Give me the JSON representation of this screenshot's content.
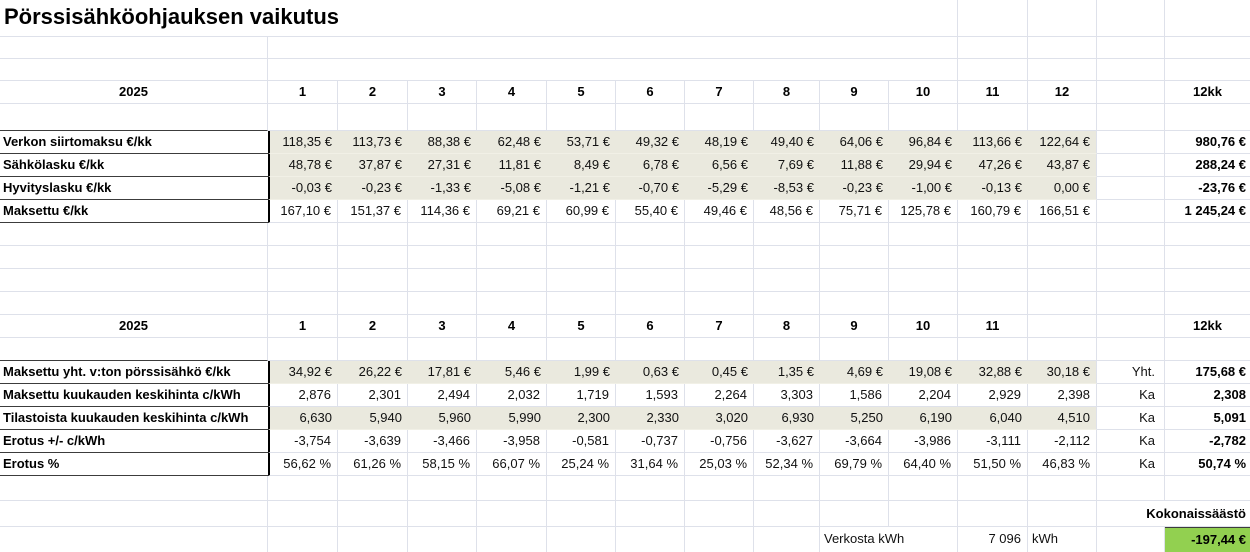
{
  "title": "Pörssisähköohjauksen vaikutus",
  "colors": {
    "highlight_row": "#eae9de",
    "savings_green": "#92d050"
  },
  "table1": {
    "year": "2025",
    "months": [
      "1",
      "2",
      "3",
      "4",
      "5",
      "6",
      "7",
      "8",
      "9",
      "10",
      "11",
      "12"
    ],
    "total_header": "12kk",
    "rows": [
      {
        "label": "Verkon siirtomaksu €/kk",
        "values": [
          "118,35 €",
          "113,73 €",
          "88,38 €",
          "62,48 €",
          "53,71 €",
          "49,32 €",
          "48,19 €",
          "49,40 €",
          "64,06 €",
          "96,84 €",
          "113,66 €",
          "122,64 €"
        ],
        "total": "980,76 €"
      },
      {
        "label": "Sähkölasku €/kk",
        "values": [
          "48,78 €",
          "37,87 €",
          "27,31 €",
          "11,81 €",
          "8,49 €",
          "6,78 €",
          "6,56 €",
          "7,69 €",
          "11,88 €",
          "29,94 €",
          "47,26 €",
          "43,87 €"
        ],
        "total": "288,24 €"
      },
      {
        "label": "Hyvityslasku €/kk",
        "values": [
          "-0,03 €",
          "-0,23 €",
          "-1,33 €",
          "-5,08 €",
          "-1,21 €",
          "-0,70 €",
          "-5,29 €",
          "-8,53 €",
          "-0,23 €",
          "-1,00 €",
          "-0,13 €",
          "0,00 €"
        ],
        "total": "-23,76 €"
      },
      {
        "label": "Maksettu €/kk",
        "values": [
          "167,10 €",
          "151,37 €",
          "114,36 €",
          "69,21 €",
          "60,99 €",
          "55,40 €",
          "49,46 €",
          "48,56 €",
          "75,71 €",
          "125,78 €",
          "160,79 €",
          "166,51 €"
        ],
        "total": "1 245,24 €"
      }
    ]
  },
  "table2": {
    "year": "2025",
    "months": [
      "1",
      "2",
      "3",
      "4",
      "5",
      "6",
      "7",
      "8",
      "9",
      "10",
      "11",
      ""
    ],
    "total_header": "12kk",
    "rows": [
      {
        "label": "Maksettu yht. v:ton pörssisähkö €/kk",
        "values": [
          "34,92 €",
          "26,22 €",
          "17,81 €",
          "5,46 €",
          "1,99 €",
          "0,63 €",
          "0,45 €",
          "1,35 €",
          "4,69 €",
          "19,08 €",
          "32,88 €",
          "30,18 €"
        ],
        "agg": "Yht.",
        "total": "175,68 €"
      },
      {
        "label": "Maksettu kuukauden keskihinta c/kWh",
        "values": [
          "2,876",
          "2,301",
          "2,494",
          "2,032",
          "1,719",
          "1,593",
          "2,264",
          "3,303",
          "1,586",
          "2,204",
          "2,929",
          "2,398"
        ],
        "agg": "Ka",
        "total": "2,308"
      },
      {
        "label": "Tilastoista kuukauden keskihinta c/kWh",
        "values": [
          "6,630",
          "5,940",
          "5,960",
          "5,990",
          "2,300",
          "2,330",
          "3,020",
          "6,930",
          "5,250",
          "6,190",
          "6,040",
          "4,510"
        ],
        "agg": "Ka",
        "total": "5,091"
      },
      {
        "label": "Erotus +/- c/kWh",
        "values": [
          "-3,754",
          "-3,639",
          "-3,466",
          "-3,958",
          "-0,581",
          "-0,737",
          "-0,756",
          "-3,627",
          "-3,664",
          "-3,986",
          "-3,111",
          "-2,112"
        ],
        "agg": "Ka",
        "total": "-2,782"
      },
      {
        "label": "Erotus %",
        "values": [
          "56,62 %",
          "61,26 %",
          "58,15 %",
          "66,07 %",
          "25,24 %",
          "31,64 %",
          "25,03 %",
          "52,34 %",
          "69,79 %",
          "64,40 %",
          "51,50 %",
          "46,83 %"
        ],
        "agg": "Ka",
        "total": "50,74 %"
      }
    ]
  },
  "footer": {
    "total_savings_label": "Kokonaissäästö",
    "grid_source_label": "Verkosta kWh",
    "grid_kwh_value": "7 096",
    "kwh_unit": "kWh",
    "total_savings_value": "-197,44 €"
  }
}
